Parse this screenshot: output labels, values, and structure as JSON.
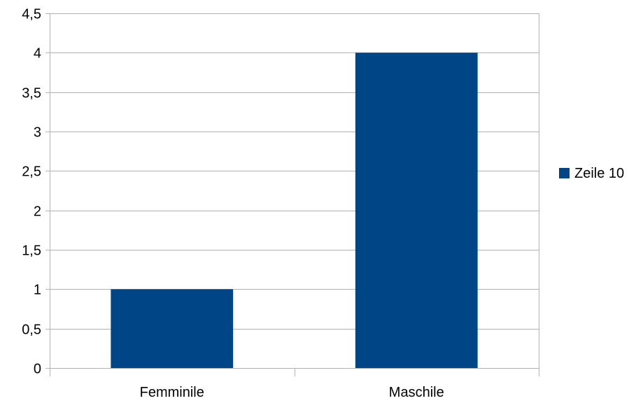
{
  "chart_data": {
    "type": "bar",
    "categories": [
      "Femminile",
      "Maschile"
    ],
    "series": [
      {
        "name": "Zeile 10",
        "values": [
          1,
          4
        ],
        "color": "#004586"
      }
    ],
    "ylim": [
      0,
      4.5
    ],
    "ytick_labels": [
      "0",
      "0,5",
      "1",
      "1,5",
      "2",
      "2,5",
      "3",
      "3,5",
      "4",
      "4,5"
    ],
    "grid": true,
    "legend_position": "right",
    "title": "",
    "xlabel": "",
    "ylabel": ""
  }
}
